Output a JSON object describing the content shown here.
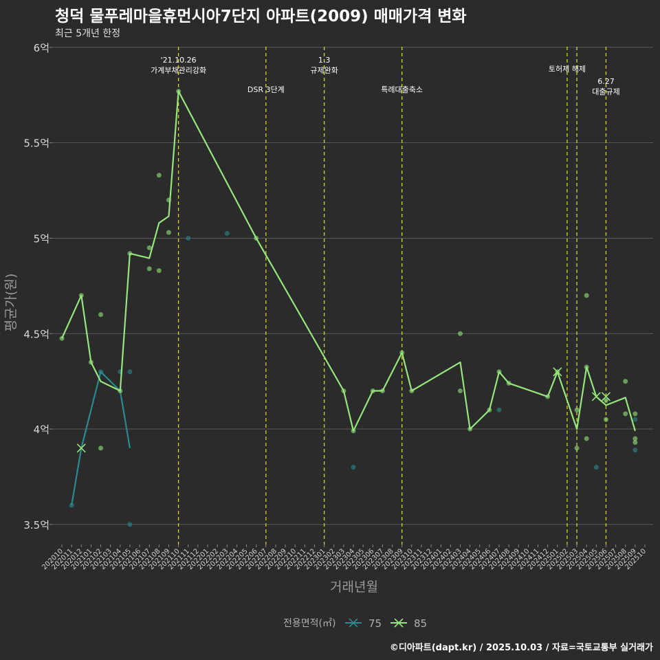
{
  "title": "청덕 물푸레마을휴먼시아7단지 아파트(2009) 매매가격 변화",
  "subtitle": "최근 5개년 한정",
  "footer": "©디아파트(dapt.kr) / 2025.10.03 / 자료=국토교통부 실거래가",
  "colors": {
    "background": "#2b2b2b",
    "grid": "#5a5a5a",
    "s75": "#2a8a8f",
    "s85": "#96e67c",
    "vline": "#d4d42a"
  },
  "chart_data": {
    "type": "line",
    "xlabel": "거래년월",
    "ylabel": "평균가(원)",
    "y_ticks": [
      {
        "value": 35000,
        "label": "3.5억"
      },
      {
        "value": 40000,
        "label": "4억"
      },
      {
        "value": 45000,
        "label": "4.5억"
      },
      {
        "value": 50000,
        "label": "5억"
      },
      {
        "value": 55000,
        "label": "5.5억"
      },
      {
        "value": 60000,
        "label": "6억"
      }
    ],
    "ylim": [
      33950,
      60500
    ],
    "x_categories": [
      "202010",
      "202011",
      "202012",
      "202101",
      "202102",
      "202103",
      "202104",
      "202105",
      "202106",
      "202107",
      "202108",
      "202109",
      "202110",
      "202111",
      "202112",
      "202201",
      "202202",
      "202203",
      "202204",
      "202205",
      "202206",
      "202207",
      "202208",
      "202209",
      "202210",
      "202211",
      "202212",
      "202301",
      "202302",
      "202303",
      "202304",
      "202305",
      "202306",
      "202307",
      "202308",
      "202309",
      "202310",
      "202311",
      "202312",
      "202401",
      "202402",
      "202403",
      "202404",
      "202405",
      "202406",
      "202407",
      "202408",
      "202409",
      "202410",
      "202411",
      "202412",
      "202501",
      "202502",
      "202503",
      "202504",
      "202505",
      "202506",
      "202507",
      "202508",
      "202509",
      "202510"
    ],
    "legend": {
      "title": "전용면적(㎡)",
      "position": "bottom",
      "items": [
        "75",
        "85"
      ]
    },
    "series": [
      {
        "name": "75",
        "color": "#2a8a8f",
        "line": [
          [
            "202011",
            36000
          ],
          [
            "202012",
            39000
          ],
          [
            "202102",
            43000
          ],
          [
            "202104",
            42000
          ],
          [
            "202105",
            39000
          ]
        ],
        "points": [
          [
            "202011",
            36000
          ],
          [
            "202102",
            43000
          ],
          [
            "202104",
            43000
          ],
          [
            "202105",
            43000
          ],
          [
            "202105",
            35000
          ],
          [
            "202111",
            50000
          ],
          [
            "202203",
            50250
          ],
          [
            "202304",
            38000
          ],
          [
            "202407",
            41000
          ],
          [
            "202505",
            38000
          ],
          [
            "202509",
            38900
          ],
          [
            "202509",
            40500
          ]
        ]
      },
      {
        "name": "85",
        "color": "#96e67c",
        "line": [
          [
            "202010",
            44750
          ],
          [
            "202012",
            47000
          ],
          [
            "202101",
            43500
          ],
          [
            "202102",
            42500
          ],
          [
            "202104",
            42000
          ],
          [
            "202105",
            49200
          ],
          [
            "202107",
            48950
          ],
          [
            "202108",
            50800
          ],
          [
            "202109",
            51150
          ],
          [
            "202110",
            57700
          ],
          [
            "202206",
            50000
          ],
          [
            "202303",
            42000
          ],
          [
            "202304",
            39900
          ],
          [
            "202306",
            42000
          ],
          [
            "202307",
            42000
          ],
          [
            "202309",
            44000
          ],
          [
            "202310",
            42000
          ],
          [
            "202403",
            43500
          ],
          [
            "202404",
            40000
          ],
          [
            "202406",
            41000
          ],
          [
            "202407",
            43000
          ],
          [
            "202408",
            42400
          ],
          [
            "202412",
            41700
          ],
          [
            "202501",
            43000
          ],
          [
            "202503",
            40000
          ],
          [
            "202504",
            43250
          ],
          [
            "202505",
            41700
          ],
          [
            "202506",
            41250
          ],
          [
            "202508",
            41650
          ],
          [
            "202509",
            39900
          ]
        ],
        "points": [
          [
            "202010",
            44750
          ],
          [
            "202012",
            47000
          ],
          [
            "202101",
            43500
          ],
          [
            "202102",
            46000
          ],
          [
            "202102",
            39000
          ],
          [
            "202104",
            42000
          ],
          [
            "202105",
            49200
          ],
          [
            "202107",
            49500
          ],
          [
            "202107",
            48400
          ],
          [
            "202108",
            53300
          ],
          [
            "202108",
            48300
          ],
          [
            "202109",
            52000
          ],
          [
            "202109",
            50300
          ],
          [
            "202110",
            57700
          ],
          [
            "202206",
            50000
          ],
          [
            "202303",
            42000
          ],
          [
            "202304",
            39900
          ],
          [
            "202306",
            42000
          ],
          [
            "202307",
            42000
          ],
          [
            "202309",
            44000
          ],
          [
            "202310",
            42000
          ],
          [
            "202403",
            45000
          ],
          [
            "202403",
            42000
          ],
          [
            "202404",
            40000
          ],
          [
            "202406",
            41000
          ],
          [
            "202407",
            43000
          ],
          [
            "202408",
            42400
          ],
          [
            "202412",
            41700
          ],
          [
            "202501",
            43000
          ],
          [
            "202503",
            41000
          ],
          [
            "202503",
            39000
          ],
          [
            "202504",
            47000
          ],
          [
            "202504",
            43250
          ],
          [
            "202504",
            39500
          ],
          [
            "202506",
            41500
          ],
          [
            "202506",
            40500
          ],
          [
            "202508",
            42500
          ],
          [
            "202508",
            40800
          ],
          [
            "202509",
            40800
          ],
          [
            "202509",
            39500
          ],
          [
            "202509",
            39300
          ]
        ],
        "cross": [
          [
            "202012",
            39000
          ],
          [
            "202501",
            43000
          ],
          [
            "202505",
            41700
          ],
          [
            "202506",
            41700
          ]
        ]
      }
    ],
    "events": [
      {
        "x": "202110",
        "label": "'21.10.26\n가계부채관리강화",
        "row": 0
      },
      {
        "x": "202207",
        "label": "DSR 3단계",
        "row": 2
      },
      {
        "x": "202301",
        "label": "1.3\n규제완화",
        "row": 0
      },
      {
        "x": "202309",
        "label": "특례대출축소",
        "row": 2
      },
      {
        "x": "202502",
        "label": "토허제 해제",
        "row": 1
      },
      {
        "x": "202503",
        "label": "",
        "row": 1
      },
      {
        "x": "202506",
        "label": "6.27\n대출규제",
        "row": 3
      }
    ]
  }
}
